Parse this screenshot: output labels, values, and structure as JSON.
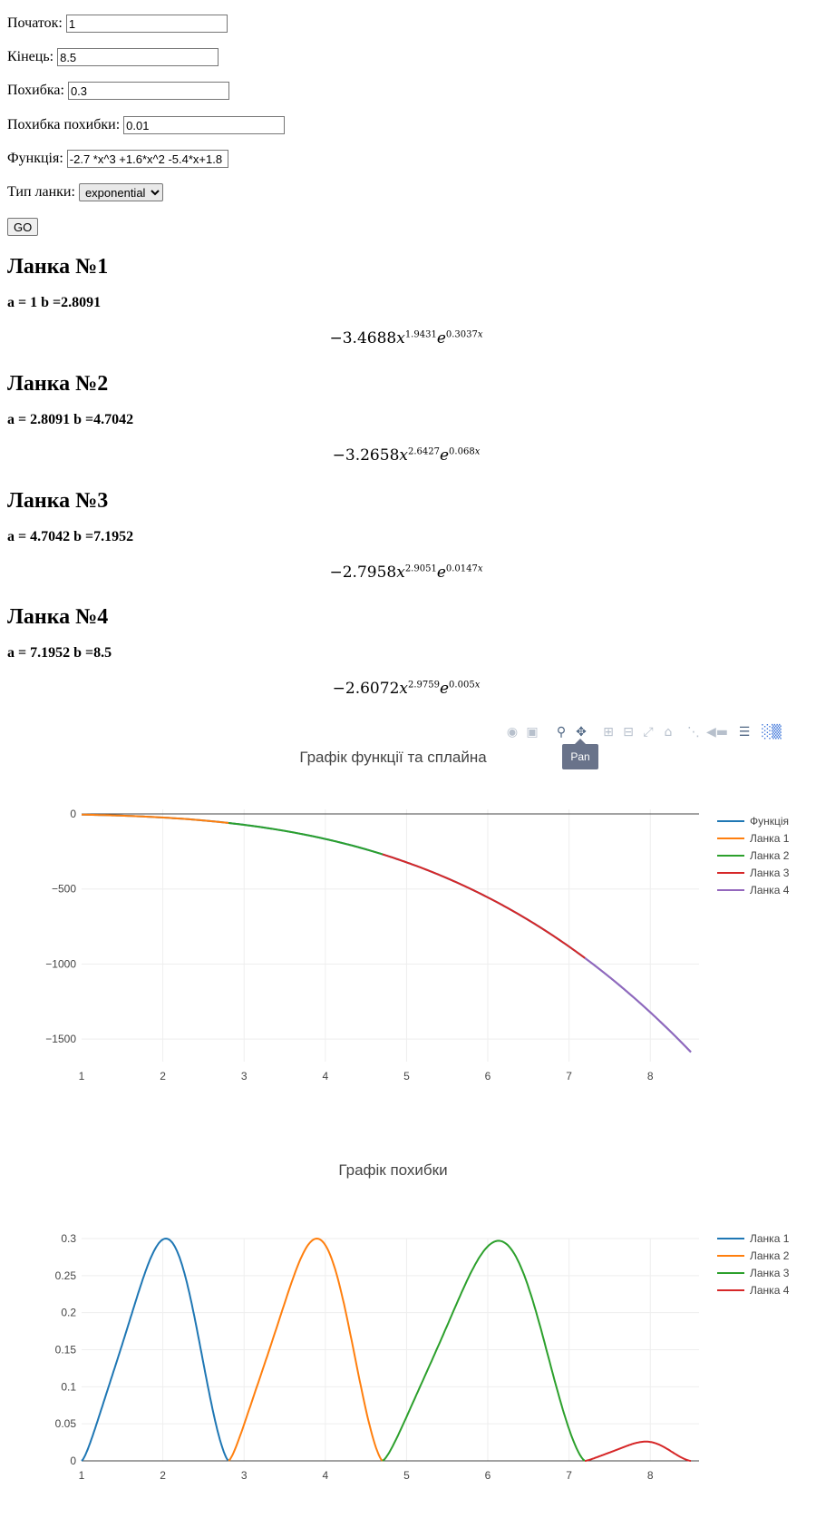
{
  "form": {
    "start_label": "Початок:",
    "start_value": "1",
    "end_label": "Кінець:",
    "end_value": "8.5",
    "error_label": "Похибка:",
    "error_value": "0.3",
    "error_error_label": "Похибка похибки:",
    "error_error_value": "0.01",
    "function_label": "Функція:",
    "function_value": "-2.7 *x^3 +1.6*x^2 -5.4*x+1.8",
    "type_label": "Тип ланки:",
    "type_value": "exponential",
    "go_label": "GO"
  },
  "segments": [
    {
      "title": "Ланка №1",
      "ab": "a = 1 b =2.8091",
      "coef": "−3.4688",
      "pow": "1.9431",
      "exp": "0.3037"
    },
    {
      "title": "Ланка №2",
      "ab": "a = 2.8091 b =4.7042",
      "coef": "−3.2658",
      "pow": "2.6427",
      "exp": "0.068"
    },
    {
      "title": "Ланка №3",
      "ab": "a = 4.7042 b =7.1952",
      "coef": "−2.7958",
      "pow": "2.9051",
      "exp": "0.0147"
    },
    {
      "title": "Ланка №4",
      "ab": "a = 7.1952 b =8.5",
      "coef": "−2.6072",
      "pow": "2.9759",
      "exp": "0.005"
    }
  ],
  "modebar": {
    "icons": [
      "camera-icon",
      "save-icon",
      "zoom-icon",
      "pan-icon",
      "zoom-in-icon",
      "zoom-out-icon",
      "autoscale-icon",
      "home-icon",
      "spike-lines-icon",
      "hover-closest-icon",
      "hover-compare-icon",
      "plotly-logo-icon"
    ],
    "tooltip": "Pan"
  },
  "chart_data": [
    {
      "type": "line",
      "title": "Графік функції та сплайна",
      "xlabel": "",
      "ylabel": "",
      "xlim": [
        1,
        8.6
      ],
      "ylim": [
        -1650,
        30
      ],
      "x_ticks": [
        1,
        2,
        3,
        4,
        5,
        6,
        7,
        8
      ],
      "y_ticks": [
        0,
        -500,
        -1000,
        -1500
      ],
      "y_tick_labels": [
        "0",
        "−500",
        "−1000",
        "−1500"
      ],
      "grid": true,
      "legend_position": "right",
      "series": [
        {
          "name": "Функція",
          "color": "#1f77b4",
          "x_range": [
            1,
            8.5
          ]
        },
        {
          "name": "Ланка 1",
          "color": "#ff7f0e",
          "x_range": [
            1,
            2.8091
          ]
        },
        {
          "name": "Ланка 2",
          "color": "#2ca02c",
          "x_range": [
            2.8091,
            4.7042
          ]
        },
        {
          "name": "Ланка 3",
          "color": "#d62728",
          "x_range": [
            4.7042,
            7.1952
          ]
        },
        {
          "name": "Ланка 4",
          "color": "#9467bd",
          "x_range": [
            7.1952,
            8.5
          ]
        }
      ]
    },
    {
      "type": "line",
      "title": "Графік похибки",
      "xlabel": "",
      "ylabel": "",
      "xlim": [
        1,
        8.6
      ],
      "ylim": [
        0,
        0.3
      ],
      "x_ticks": [
        1,
        2,
        3,
        4,
        5,
        6,
        7,
        8
      ],
      "y_ticks": [
        0,
        0.05,
        0.1,
        0.15,
        0.2,
        0.25,
        0.3
      ],
      "y_tick_labels": [
        "0",
        "0.05",
        "0.1",
        "0.15",
        "0.2",
        "0.25",
        "0.3"
      ],
      "grid": true,
      "legend_position": "right",
      "series": [
        {
          "name": "Ланка 1",
          "color": "#1f77b4",
          "x_range": [
            1,
            2.8091
          ],
          "peak": 0.3
        },
        {
          "name": "Ланка 2",
          "color": "#ff7f0e",
          "x_range": [
            2.8091,
            4.7042
          ],
          "peak": 0.3
        },
        {
          "name": "Ланка 3",
          "color": "#2ca02c",
          "x_range": [
            4.7042,
            7.1952
          ],
          "peak": 0.297
        },
        {
          "name": "Ланка 4",
          "color": "#d62728",
          "x_range": [
            7.1952,
            8.5
          ],
          "peak": 0.026
        }
      ]
    }
  ]
}
